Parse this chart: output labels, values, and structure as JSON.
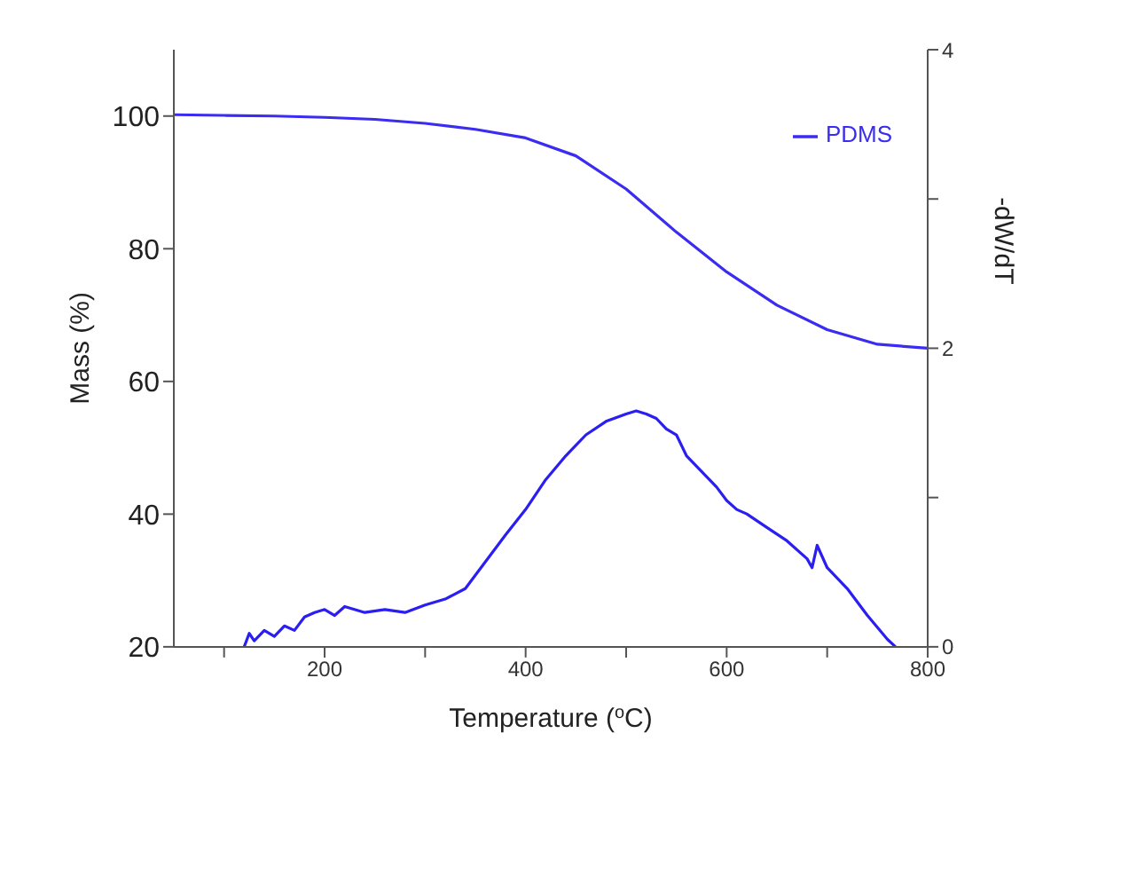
{
  "chart_data": {
    "type": "line",
    "xlabel": "Temperature ($^{o}$C)",
    "ylabel": "Mass (%)",
    "y2label": "-dW/dT",
    "xlim": [
      50,
      800
    ],
    "xticks": [
      {
        "value": 100,
        "label": null
      },
      200,
      {
        "value": 300,
        "label": null
      },
      400,
      {
        "value": 500,
        "label": null
      },
      600,
      {
        "value": 700,
        "label": null
      },
      800
    ],
    "ylim": [
      20,
      110
    ],
    "yticks": [
      20,
      40,
      60,
      80,
      100
    ],
    "y2lim": [
      0,
      4
    ],
    "y2ticks": [
      0,
      {
        "value": 1,
        "label": null
      },
      2,
      {
        "value": 3,
        "label": null
      },
      4
    ],
    "legend": "top right",
    "marker": "none",
    "line_style": "solid",
    "series": [
      {
        "name": "PDMS",
        "color": "#3a2cf0",
        "x": [
          50,
          100,
          150,
          200,
          250,
          300,
          350,
          400,
          450,
          500,
          550,
          600,
          650,
          700,
          750,
          800
        ],
        "values": [
          100.2,
          100.1,
          100,
          99.8,
          99.5,
          98.9,
          98,
          96.7,
          94,
          89,
          82.5,
          76.5,
          71.5,
          67.8,
          65.6,
          65
        ]
      },
      {
        "color": "#2a1ff0",
        "axis": "y2",
        "x": [
          120,
          125,
          130,
          140,
          150,
          160,
          170,
          180,
          190,
          200,
          210,
          220,
          240,
          260,
          280,
          300,
          320,
          340,
          360,
          380,
          400,
          420,
          440,
          460,
          480,
          500,
          510,
          520,
          530,
          540,
          550,
          560,
          570,
          580,
          590,
          600,
          610,
          620,
          640,
          660,
          680,
          685,
          690,
          700,
          720,
          740,
          760,
          768
        ],
        "values": [
          0,
          0.09,
          0.04,
          0.11,
          0.07,
          0.14,
          0.11,
          0.2,
          0.23,
          0.25,
          0.21,
          0.27,
          0.23,
          0.25,
          0.23,
          0.28,
          0.32,
          0.39,
          0.57,
          0.75,
          0.92,
          1.12,
          1.28,
          1.42,
          1.51,
          1.56,
          1.58,
          1.56,
          1.53,
          1.46,
          1.42,
          1.28,
          1.21,
          1.14,
          1.07,
          0.98,
          0.92,
          0.89,
          0.8,
          0.71,
          0.59,
          0.53,
          0.68,
          0.53,
          0.39,
          0.21,
          0.05,
          0
        ]
      }
    ]
  }
}
